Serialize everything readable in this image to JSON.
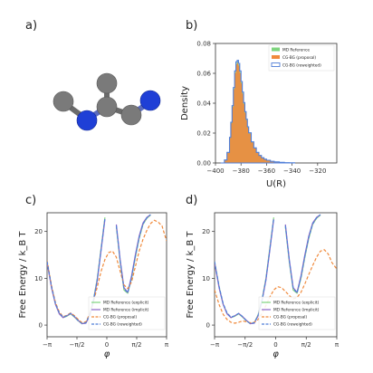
{
  "panels": {
    "a": {
      "label": "a)"
    },
    "b": {
      "label": "b)"
    },
    "c": {
      "label": "c)"
    },
    "d": {
      "label": "d)"
    }
  },
  "colors": {
    "md_explicit": "#7ed47e",
    "md_implicit": "#8a63c8",
    "proposal": "#f08a3c",
    "reweighted": "#4f7ed8",
    "atom_carbon": "#7a7a7a",
    "atom_nitrogen": "#1f3fd6"
  },
  "chart_data": [
    {
      "panel": "b",
      "type": "area",
      "xlabel": "U(R)",
      "ylabel": "Density",
      "xlim": [
        -400,
        -305
      ],
      "ylim": [
        0,
        0.08
      ],
      "xticks": [
        -400,
        -380,
        -360,
        -340,
        -320
      ],
      "xtick_labels": [
        "−400",
        "−380",
        "−360",
        "−340",
        "−320"
      ],
      "yticks": [
        0,
        0.02,
        0.04,
        0.06,
        0.08
      ],
      "ytick_labels": [
        "0.00",
        "0.02",
        "0.04",
        "0.06",
        "0.08"
      ],
      "grid": false,
      "legend": "top-right",
      "series": [
        {
          "name": "MD Reference",
          "kind": "fill",
          "color": "#7ed47e"
        },
        {
          "name": "CG-BG (proposal)",
          "kind": "fill",
          "color": "#f08a3c"
        },
        {
          "name": "CG-BG (reweighted)",
          "kind": "step",
          "color": "#4f7ed8"
        }
      ],
      "x": [
        -396,
        -393,
        -391,
        -389,
        -388,
        -387,
        -386,
        -385,
        -384,
        -383,
        -382,
        -381,
        -380,
        -379,
        -378,
        -377,
        -376,
        -375,
        -374,
        -372,
        -370,
        -368,
        -366,
        -364,
        -362,
        -360,
        -357,
        -354,
        -350,
        -346,
        -342,
        -338
      ],
      "values": [
        0.0,
        0.002,
        0.007,
        0.017,
        0.027,
        0.038,
        0.05,
        0.061,
        0.067,
        0.068,
        0.066,
        0.061,
        0.054,
        0.047,
        0.04,
        0.034,
        0.029,
        0.024,
        0.02,
        0.014,
        0.01,
        0.007,
        0.005,
        0.0035,
        0.0025,
        0.0018,
        0.0011,
        0.0007,
        0.0004,
        0.0002,
        0.0001,
        0.0
      ]
    },
    {
      "panel": "c",
      "type": "line",
      "xlabel": "φ",
      "ylabel": "Free Energy / k_B T",
      "xlim": [
        -3.1416,
        3.1416
      ],
      "ylim": [
        -2.5,
        24
      ],
      "xticks": [
        -3.1416,
        -1.5708,
        0,
        1.5708,
        3.1416
      ],
      "xtick_labels": [
        "−π",
        "−π/2",
        "0",
        "π/2",
        "π"
      ],
      "yticks": [
        0,
        10,
        20
      ],
      "ytick_labels": [
        "0",
        "10",
        "20"
      ],
      "grid": false,
      "legend": "bottom-right",
      "x": [
        -3.14,
        -2.9,
        -2.7,
        -2.5,
        -2.3,
        -2.1,
        -1.9,
        -1.7,
        -1.5,
        -1.3,
        -1.1,
        -0.9,
        -0.7,
        -0.5,
        -0.3,
        -0.1,
        0.1,
        0.3,
        0.5,
        0.7,
        0.9,
        1.1,
        1.3,
        1.5,
        1.7,
        1.9,
        2.1,
        2.3,
        2.5,
        2.7,
        2.9,
        3.14
      ],
      "series": [
        {
          "name": "MD Reference (explicit)",
          "style": "solid",
          "color": "#7ed47e",
          "values": [
            13.5,
            8.0,
            4.5,
            2.5,
            1.6,
            1.9,
            2.4,
            1.7,
            0.9,
            0.3,
            0.5,
            2.2,
            5.5,
            10.0,
            16.5,
            23.0,
            null,
            null,
            21.0,
            13.5,
            7.5,
            6.8,
            10.0,
            14.5,
            18.5,
            21.5,
            22.8,
            23.5,
            null,
            null,
            null,
            18.5
          ]
        },
        {
          "name": "MD Reference (implicit)",
          "style": "solid",
          "color": "#8a63c8",
          "values": [
            13.3,
            7.8,
            4.4,
            2.4,
            1.6,
            2.0,
            2.5,
            1.8,
            1.0,
            0.3,
            0.4,
            2.0,
            5.2,
            9.6,
            16.0,
            22.6,
            null,
            null,
            21.5,
            14.0,
            8.0,
            7.0,
            10.5,
            15.0,
            19.0,
            21.8,
            23.0,
            23.6,
            null,
            null,
            null,
            18.8
          ]
        },
        {
          "name": "CG-BG (proposal)",
          "style": "dashed",
          "color": "#f08a3c",
          "values": [
            13.8,
            8.3,
            4.8,
            2.8,
            1.8,
            2.1,
            2.6,
            2.0,
            1.2,
            0.5,
            0.7,
            2.4,
            5.0,
            8.2,
            11.5,
            14.0,
            15.5,
            15.8,
            14.5,
            11.5,
            8.6,
            7.8,
            9.2,
            12.5,
            15.8,
            18.3,
            20.2,
            21.7,
            22.4,
            22.0,
            21.2,
            18.0
          ]
        },
        {
          "name": "CG-BG (reweighted)",
          "style": "dashed",
          "color": "#4f7ed8",
          "values": [
            13.6,
            8.1,
            4.6,
            2.6,
            1.7,
            2.0,
            2.5,
            1.8,
            0.9,
            0.3,
            0.5,
            2.1,
            5.3,
            9.8,
            16.2,
            22.8,
            null,
            null,
            21.2,
            13.8,
            7.8,
            6.9,
            10.2,
            14.7,
            18.7,
            21.6,
            22.9,
            23.6,
            null,
            null,
            null,
            18.6
          ]
        }
      ]
    },
    {
      "panel": "d",
      "type": "line",
      "xlabel": "φ",
      "ylabel": "Free Energy / k_B T",
      "xlim": [
        -3.1416,
        3.1416
      ],
      "ylim": [
        -2.5,
        24
      ],
      "xticks": [
        -3.1416,
        -1.5708,
        0,
        1.5708,
        3.1416
      ],
      "xtick_labels": [
        "−π",
        "−π/2",
        "0",
        "π/2",
        "π"
      ],
      "yticks": [
        0,
        10,
        20
      ],
      "ytick_labels": [
        "0",
        "10",
        "20"
      ],
      "grid": false,
      "legend": "bottom-right",
      "x": [
        -3.14,
        -2.9,
        -2.7,
        -2.5,
        -2.3,
        -2.1,
        -1.9,
        -1.7,
        -1.5,
        -1.3,
        -1.1,
        -0.9,
        -0.7,
        -0.5,
        -0.3,
        -0.1,
        0.1,
        0.3,
        0.5,
        0.7,
        0.9,
        1.1,
        1.3,
        1.5,
        1.7,
        1.9,
        2.1,
        2.3,
        2.5,
        2.7,
        2.9,
        3.14
      ],
      "series": [
        {
          "name": "MD Reference (explicit)",
          "style": "solid",
          "color": "#7ed47e",
          "values": [
            13.5,
            8.0,
            4.5,
            2.5,
            1.6,
            1.9,
            2.4,
            1.7,
            0.9,
            0.3,
            0.5,
            2.2,
            5.5,
            10.0,
            16.5,
            23.0,
            null,
            null,
            21.0,
            13.5,
            7.5,
            6.8,
            10.0,
            14.5,
            18.5,
            21.5,
            22.8,
            23.5,
            null,
            null,
            null,
            18.5
          ]
        },
        {
          "name": "MD Reference (implicit)",
          "style": "solid",
          "color": "#8a63c8",
          "values": [
            13.3,
            7.8,
            4.4,
            2.4,
            1.6,
            2.0,
            2.5,
            1.8,
            1.0,
            0.3,
            0.4,
            2.0,
            5.2,
            9.6,
            16.0,
            22.6,
            null,
            null,
            21.5,
            14.0,
            8.0,
            7.0,
            10.5,
            15.0,
            19.0,
            21.8,
            23.0,
            23.6,
            null,
            null,
            null,
            18.8
          ]
        },
        {
          "name": "CG-BG (proposal)",
          "style": "dashed",
          "color": "#f08a3c",
          "values": [
            7.5,
            4.3,
            2.3,
            1.2,
            0.6,
            0.4,
            0.6,
            0.9,
            0.7,
            0.5,
            0.6,
            1.2,
            2.5,
            4.2,
            6.0,
            7.5,
            8.2,
            8.0,
            7.2,
            6.3,
            5.6,
            5.9,
            7.0,
            8.8,
            10.8,
            12.7,
            14.5,
            15.8,
            16.1,
            15.2,
            13.3,
            12.0
          ]
        },
        {
          "name": "CG-BG (reweighted)",
          "style": "dashed",
          "color": "#4f7ed8",
          "values": [
            13.6,
            8.1,
            4.6,
            2.6,
            1.7,
            2.0,
            2.5,
            1.8,
            0.9,
            0.3,
            0.5,
            2.1,
            5.3,
            9.8,
            16.2,
            22.8,
            null,
            null,
            21.2,
            13.8,
            7.8,
            6.9,
            10.2,
            14.7,
            18.7,
            21.6,
            22.9,
            23.6,
            null,
            null,
            null,
            18.6
          ]
        }
      ]
    }
  ]
}
